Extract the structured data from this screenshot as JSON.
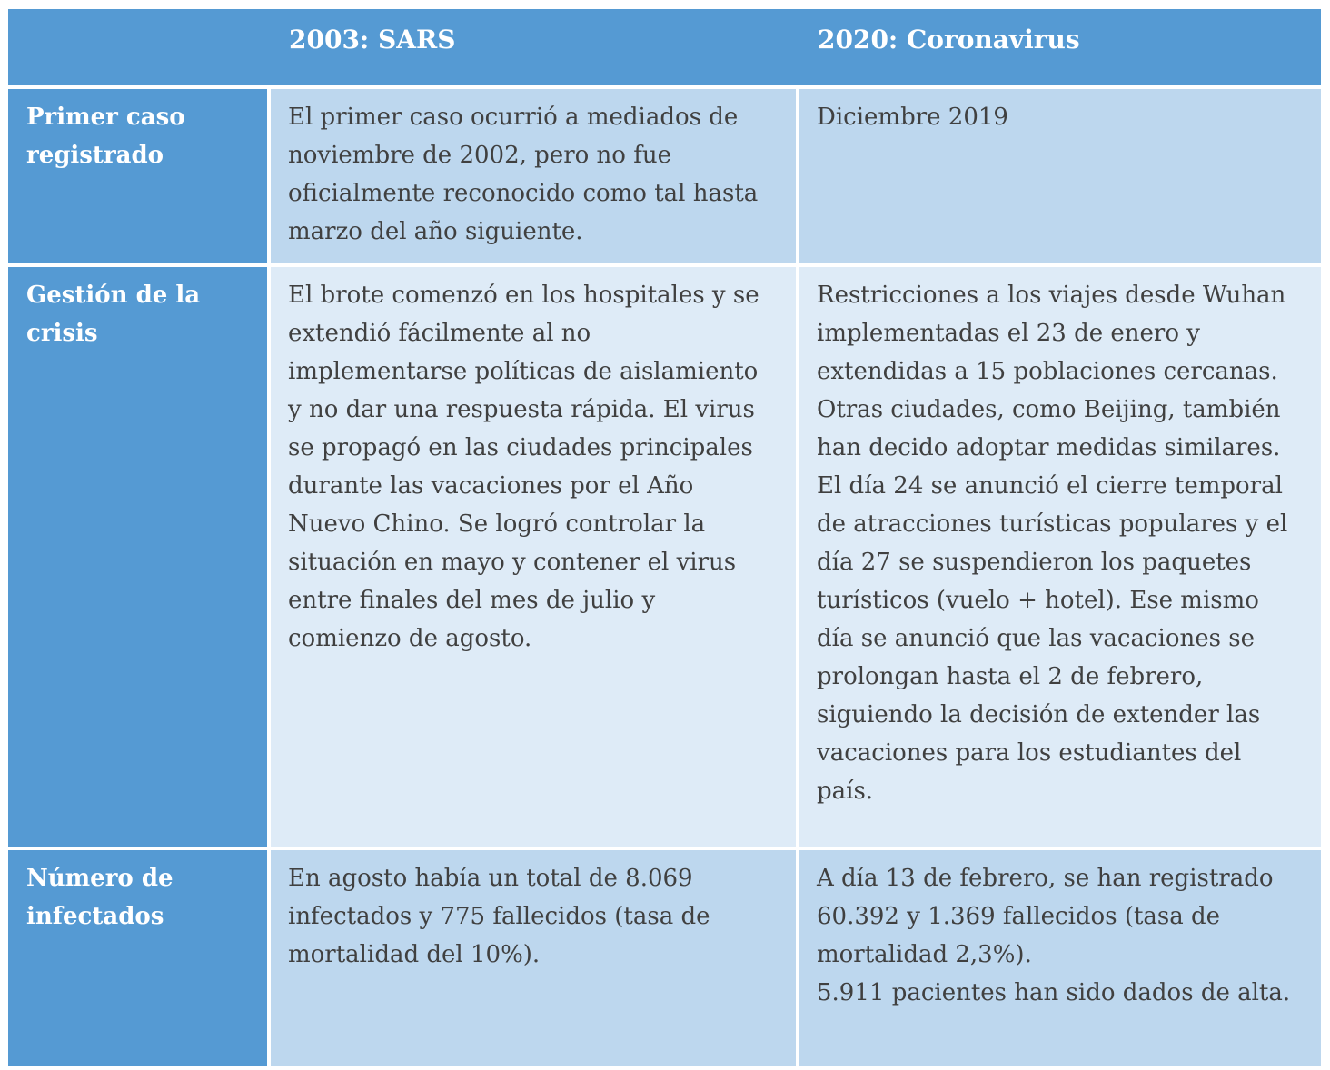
{
  "table": {
    "columns": [
      {
        "label": ""
      },
      {
        "label": "2003: SARS"
      },
      {
        "label": "2020: Coronavirus"
      }
    ],
    "rows": [
      {
        "header": "Primer caso registrado",
        "sars": "El primer caso ocurrió a mediados de noviembre de 2002, pero no fue oficialmente reconocido como tal hasta marzo del año siguiente.",
        "coronavirus": "Diciembre 2019"
      },
      {
        "header": "Gestión de la crisis",
        "sars": "El brote comenzó en los hospitales y se extendió fácilmente al no implementarse políticas de aislamiento y no dar una respuesta rápida. El virus se propagó en las ciudades principales durante las vacaciones por el Año Nuevo Chino. Se logró controlar la situación en mayo y contener el virus entre finales del mes de julio y comienzo de agosto.",
        "coronavirus": "Restricciones a los viajes desde Wuhan implementadas el 23 de enero y extendidas a 15 poblaciones cercanas. Otras ciudades, como Beijing, también han decido adoptar medidas similares. El día 24 se anunció el cierre temporal de atracciones turísticas populares y el día 27 se suspendieron los paquetes turísticos (vuelo + hotel). Ese mismo día se anunció que las vacaciones se prolongan hasta el 2 de febrero, siguiendo la decisión de extender las vacaciones para los estudiantes del país."
      },
      {
        "header": "Número de infectados",
        "sars": "En agosto había un total de 8.069 infectados y 775 fallecidos (tasa de mortalidad del 10%).",
        "coronavirus": "A día 13 de febrero, se han registrado 60.392 y 1.369 fallecidos (tasa de mortalidad 2,3%).\n5.911 pacientes han sido dados de alta."
      }
    ],
    "colors": {
      "header_blue": "#559AD3",
      "band_dark": "#BDD7EE",
      "band_light": "#DEEBF7",
      "border": "#FFFFFF",
      "body_text": "#404040",
      "header_text": "#FFFFFF"
    }
  }
}
